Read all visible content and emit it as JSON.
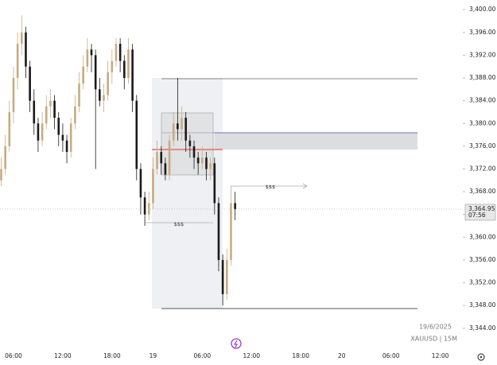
{
  "chart_data": {
    "type": "candlestick",
    "symbol_label": "XAUUSD | 15M",
    "date_label": "19/6/2025",
    "annotations": [
      "$$$",
      "$$$"
    ],
    "categories": [
      null,
      null,
      null,
      "06:00",
      null,
      null,
      null,
      null,
      null,
      null,
      null,
      null,
      null,
      null,
      null,
      "12:00",
      null,
      null,
      null,
      null,
      null,
      null,
      null,
      null,
      null,
      null,
      null,
      "18:00",
      null,
      null,
      null,
      null,
      null,
      null,
      null,
      null,
      null,
      "19",
      null,
      null,
      null,
      null,
      null,
      null,
      null,
      null,
      null,
      null,
      null,
      "06:00",
      null,
      null,
      null,
      null,
      null,
      null,
      null,
      null,
      null,
      null,
      null,
      "12:00",
      null,
      null,
      null,
      null,
      null,
      null,
      null,
      null,
      null,
      null,
      null,
      "18:00",
      null,
      null,
      null,
      null,
      null,
      null,
      null,
      null,
      null,
      "20",
      null,
      null,
      null,
      null,
      null,
      null,
      null,
      null,
      null,
      null,
      null,
      "06:00",
      null,
      null,
      null,
      null,
      null,
      null,
      null,
      null,
      null,
      null,
      null,
      "12:00"
    ],
    "open": [
      3370,
      3372,
      3376,
      3382,
      3388,
      3394,
      3396,
      3390,
      3384,
      3380,
      3377,
      3380,
      3383,
      3384,
      3381,
      3378,
      3377,
      3375,
      3380,
      3383,
      3387,
      3390,
      3393,
      3392,
      3386,
      3384,
      3385,
      3389,
      3391,
      3394,
      3391,
      3388,
      3393,
      3384,
      3372,
      3367,
      3364,
      3366,
      3372,
      3375,
      3373,
      3371,
      3377,
      3380,
      3379,
      3381,
      3377,
      3376,
      3374,
      3373,
      3374,
      3372,
      3373,
      3366,
      3356,
      3350,
      3356,
      3366,
      null,
      null,
      null,
      null,
      null,
      null,
      null,
      null,
      null,
      null,
      null,
      null,
      null,
      null,
      null,
      null,
      null,
      null,
      null,
      null,
      null,
      null,
      null,
      null,
      null,
      null,
      null,
      null,
      null,
      null,
      null,
      null,
      null,
      null,
      null,
      null,
      null,
      null,
      null,
      null,
      null,
      null,
      null,
      null,
      null,
      null,
      null,
      null,
      null,
      null
    ],
    "high": [
      3374,
      3378,
      3384,
      3390,
      3396,
      3399,
      3397,
      3391,
      3386,
      3381,
      3382,
      3385,
      3386,
      3385,
      3382,
      3380,
      3378,
      3381,
      3385,
      3389,
      3392,
      3395,
      3394,
      3393,
      3388,
      3387,
      3391,
      3393,
      3395,
      3395,
      3392,
      3395,
      3394,
      3385,
      3373,
      3368,
      3368,
      3374,
      3377,
      3376,
      3374,
      3378,
      3382,
      3388,
      3383,
      3382,
      3378,
      3377,
      3375,
      3376,
      3375,
      3374,
      3374,
      3367,
      3357,
      3358,
      3369,
      3368,
      null,
      null,
      null,
      null,
      null,
      null,
      null,
      null,
      null,
      null,
      null,
      null,
      null,
      null,
      null,
      null,
      null,
      null,
      null,
      null,
      null,
      null,
      null,
      null,
      null,
      null,
      null,
      null,
      null,
      null,
      null,
      null,
      null,
      null,
      null,
      null,
      null,
      null,
      null,
      null,
      null,
      null,
      null,
      null,
      null,
      null,
      null,
      null,
      null,
      null
    ],
    "low": [
      3369,
      3371,
      3375,
      3380,
      3386,
      3392,
      3388,
      3382,
      3378,
      3375,
      3376,
      3379,
      3381,
      3379,
      3376,
      3375,
      3373,
      3374,
      3379,
      3382,
      3386,
      3389,
      3389,
      3372,
      3383,
      3382,
      3384,
      3387,
      3390,
      3389,
      3386,
      3387,
      3382,
      3370,
      3364,
      3362,
      3363,
      3365,
      3371,
      3371,
      3370,
      3370,
      3376,
      3377,
      3377,
      3375,
      3374,
      3372,
      3371,
      3372,
      3370,
      3370,
      3364,
      3354,
      3348,
      3349,
      3355,
      3363,
      null,
      null,
      null,
      null,
      null,
      null,
      null,
      null,
      null,
      null,
      null,
      null,
      null,
      null,
      null,
      null,
      null,
      null,
      null,
      null,
      null,
      null,
      null,
      null,
      null,
      null,
      null,
      null,
      null,
      null,
      null,
      null,
      null,
      null,
      null,
      null,
      null,
      null,
      null,
      null,
      null,
      null,
      null,
      null,
      null,
      null,
      null,
      null,
      null,
      null
    ],
    "close": [
      3372,
      3376,
      3382,
      3388,
      3394,
      3396,
      3390,
      3384,
      3380,
      3377,
      3380,
      3383,
      3384,
      3381,
      3378,
      3377,
      3375,
      3380,
      3383,
      3387,
      3390,
      3393,
      3392,
      3386,
      3384,
      3385,
      3389,
      3391,
      3394,
      3391,
      3388,
      3393,
      3384,
      3372,
      3367,
      3364,
      3366,
      3372,
      3375,
      3373,
      3371,
      3377,
      3380,
      3379,
      3381,
      3377,
      3376,
      3374,
      3373,
      3374,
      3372,
      3373,
      3366,
      3356,
      3350,
      3356,
      3366,
      3364.95,
      null,
      null,
      null,
      null,
      null,
      null,
      null,
      null,
      null,
      null,
      null,
      null,
      null,
      null,
      null,
      null,
      null,
      null,
      null,
      null,
      null,
      null,
      null,
      null,
      null,
      null,
      null,
      null,
      null,
      null,
      null,
      null,
      null,
      null,
      null,
      null,
      null,
      null,
      null,
      null,
      null,
      null,
      null,
      null,
      null,
      null,
      null,
      null,
      null,
      null
    ],
    "up_color": "#c9ab80",
    "down_color": "#1a1a1a",
    "last_price": {
      "value": 3364.95,
      "label": "3,364.95"
    },
    "countdown": "07:56",
    "ylim": [
      3341.6,
      3401.7
    ],
    "yticks": [
      {
        "value": 3344,
        "label": "3,344.00"
      },
      {
        "value": 3348,
        "label": "3,348.00"
      },
      {
        "value": 3352,
        "label": "3,352.00"
      },
      {
        "value": 3356,
        "label": "3,356.00"
      },
      {
        "value": 3360,
        "label": "3,360.00"
      },
      {
        "value": 3364,
        "label": "3,364.00"
      },
      {
        "value": 3368,
        "label": "3,368.00"
      },
      {
        "value": 3372,
        "label": "3,372.00"
      },
      {
        "value": 3376,
        "label": "3,376.00"
      },
      {
        "value": 3380,
        "label": "3,380.00"
      },
      {
        "value": 3384,
        "label": "3,384.00"
      },
      {
        "value": 3388,
        "label": "3,388.00"
      },
      {
        "value": 3392,
        "label": "3,392.00"
      },
      {
        "value": 3396,
        "label": "3,396.00"
      },
      {
        "value": 3400,
        "label": "3,400.00"
      }
    ]
  }
}
